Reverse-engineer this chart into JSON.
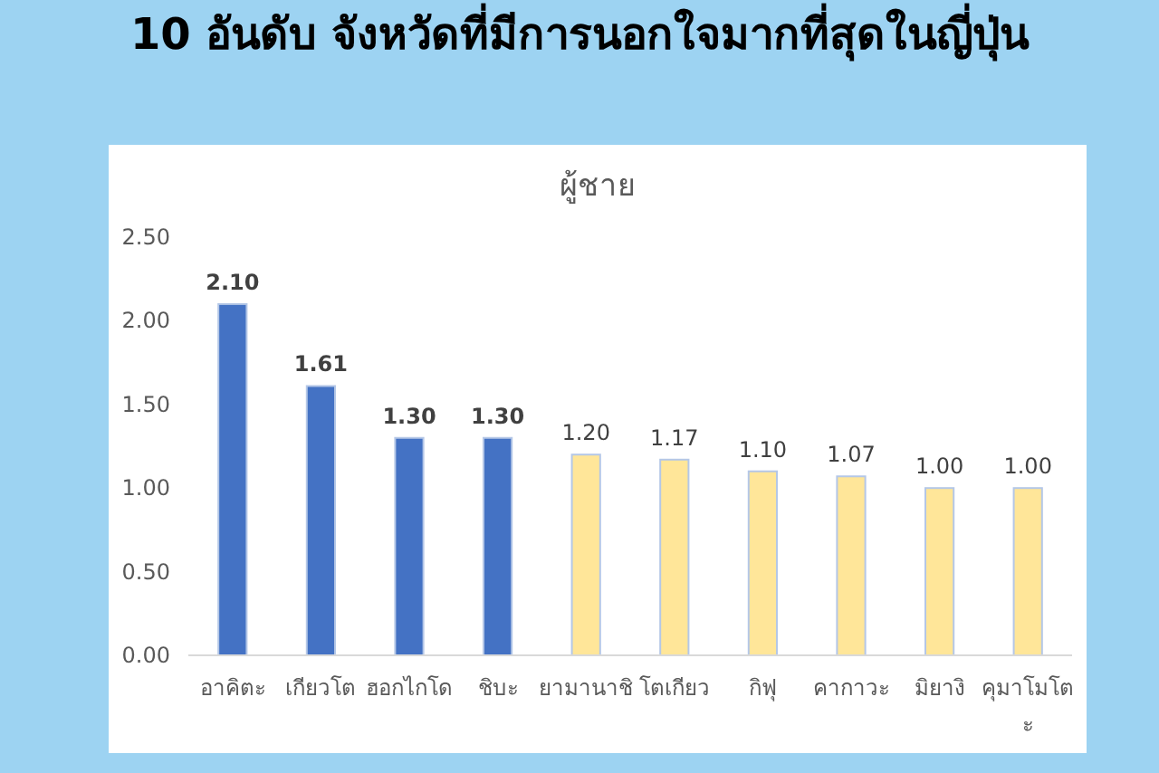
{
  "chart_data": {
    "type": "bar",
    "title": "10 อันดับ จังหวัดที่มีการนอกใจมากที่สุดในญี่ปุ่น",
    "subtitle": "ผู้ชาย",
    "categories": [
      "อาคิตะ",
      "เกียวโต",
      "ฮอกไกโด",
      "ชิบะ",
      "ยามานาชิ",
      "โตเกียว",
      "กิฟุ",
      "คากาวะ",
      "มิยางิ",
      "คุมาโมโตะ"
    ],
    "values": [
      2.1,
      1.61,
      1.3,
      1.3,
      1.2,
      1.17,
      1.1,
      1.07,
      1.0,
      1.0
    ],
    "colors": [
      "#4472c4",
      "#4472c4",
      "#4472c4",
      "#4472c4",
      "#ffe699",
      "#ffe699",
      "#ffe699",
      "#ffe699",
      "#ffe699",
      "#ffe699"
    ],
    "value_labels": [
      "2.10",
      "1.61",
      "1.30",
      "1.30",
      "1.20",
      "1.17",
      "1.10",
      "1.07",
      "1.00",
      "1.00"
    ],
    "ylim": [
      0,
      2.5
    ],
    "yticks": [
      {
        "value": 0,
        "label": "0.00"
      },
      {
        "value": 0.5,
        "label": "0.50"
      },
      {
        "value": 1,
        "label": "1.00"
      },
      {
        "value": 1.5,
        "label": "1.50"
      },
      {
        "value": 2,
        "label": "2.00"
      },
      {
        "value": 2.5,
        "label": "2.50"
      }
    ],
    "grid": false
  }
}
